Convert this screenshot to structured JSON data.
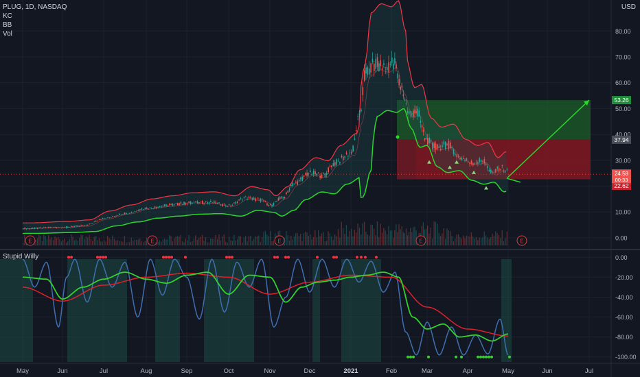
{
  "header": {
    "symbol": "PLUG, 1D, NASDAQ",
    "indicators": [
      "KC",
      "BB",
      "Vol"
    ],
    "currency": "USD",
    "lower_indicator": "Stupid Willy"
  },
  "colors": {
    "background": "#131722",
    "grid": "#1e222d",
    "up": "#26a69a",
    "down": "#ef5350",
    "keltner": "#f23645",
    "bollinger": "#2bd62b",
    "willy_line": "#3f6fb0",
    "willy_fast": "#34d12e",
    "willy_slow": "#e0202d",
    "profit_zone": "#1d5e2a",
    "loss_zone": "#8a1822"
  },
  "chart_data": [
    {
      "type": "candlestick",
      "x_ticks": [
        "May",
        "Jun",
        "Jul",
        "Aug",
        "Sep",
        "Oct",
        "Nov",
        "Dec",
        "2021",
        "Feb",
        "Mar",
        "Apr",
        "May",
        "Jun",
        "Jul"
      ],
      "y_ticks": [
        "80.00",
        "70.00",
        "60.00",
        "50.00",
        "40.00",
        "30.00",
        "20.00",
        "10.00",
        "0.00"
      ],
      "ylim": [
        -4,
        92
      ],
      "price_series": [
        {
          "m": 0,
          "v": 3.6
        },
        {
          "m": 1,
          "v": 4.1
        },
        {
          "m": 1.5,
          "v": 4.6
        },
        {
          "m": 2,
          "v": 7.5
        },
        {
          "m": 2.5,
          "v": 9.5
        },
        {
          "m": 3,
          "v": 11.5
        },
        {
          "m": 3.5,
          "v": 12.5
        },
        {
          "m": 4,
          "v": 13.5
        },
        {
          "m": 4.5,
          "v": 13.8
        },
        {
          "m": 5,
          "v": 12.5
        },
        {
          "m": 5.4,
          "v": 15.5
        },
        {
          "m": 5.8,
          "v": 14.5
        },
        {
          "m": 6,
          "v": 12.5
        },
        {
          "m": 6.3,
          "v": 15.5
        },
        {
          "m": 6.6,
          "v": 21
        },
        {
          "m": 7,
          "v": 25
        },
        {
          "m": 7.3,
          "v": 24
        },
        {
          "m": 7.6,
          "v": 29
        },
        {
          "m": 8,
          "v": 33
        },
        {
          "m": 8.2,
          "v": 47
        },
        {
          "m": 8.35,
          "v": 64
        },
        {
          "m": 8.6,
          "v": 67
        },
        {
          "m": 8.85,
          "v": 66
        },
        {
          "m": 9.05,
          "v": 68
        },
        {
          "m": 9.25,
          "v": 58
        },
        {
          "m": 9.5,
          "v": 48
        },
        {
          "m": 9.7,
          "v": 49
        },
        {
          "m": 9.95,
          "v": 38
        },
        {
          "m": 10.2,
          "v": 35
        },
        {
          "m": 10.5,
          "v": 36
        },
        {
          "m": 10.8,
          "v": 31
        },
        {
          "m": 11.1,
          "v": 29
        },
        {
          "m": 11.35,
          "v": 30
        },
        {
          "m": 11.6,
          "v": 25
        },
        {
          "m": 11.8,
          "v": 27
        },
        {
          "m": 12,
          "v": 25.5
        }
      ],
      "position_tool": {
        "entry": "37.94",
        "target": "53.26",
        "stop": "22.62",
        "current": "24.58",
        "countdown": "00:33"
      },
      "earnings_markers": [
        "E",
        "E",
        "E",
        "E",
        "E"
      ]
    },
    {
      "type": "line",
      "name": "Stupid Willy",
      "y_ticks": [
        "0.00",
        "-20.00",
        "-40.00",
        "-60.00",
        "-80.00",
        "-100.00"
      ],
      "ylim": [
        -105,
        5
      ],
      "slow_series": [
        {
          "m": 0,
          "v": -30
        },
        {
          "m": 1,
          "v": -44
        },
        {
          "m": 2,
          "v": -28
        },
        {
          "m": 3,
          "v": -20
        },
        {
          "m": 4,
          "v": -16
        },
        {
          "m": 5,
          "v": -20
        },
        {
          "m": 6,
          "v": -37
        },
        {
          "m": 7,
          "v": -25
        },
        {
          "m": 8,
          "v": -18
        },
        {
          "m": 9,
          "v": -20
        },
        {
          "m": 10,
          "v": -50
        },
        {
          "m": 11,
          "v": -72
        },
        {
          "m": 12,
          "v": -79
        }
      ],
      "fast_series": [
        {
          "m": 0,
          "v": -20
        },
        {
          "m": 0.6,
          "v": -22
        },
        {
          "m": 1,
          "v": -42
        },
        {
          "m": 1.5,
          "v": -30
        },
        {
          "m": 2,
          "v": -22
        },
        {
          "m": 2.5,
          "v": -15
        },
        {
          "m": 3,
          "v": -22
        },
        {
          "m": 3.5,
          "v": -26
        },
        {
          "m": 4,
          "v": -18
        },
        {
          "m": 4.5,
          "v": -15
        },
        {
          "m": 5,
          "v": -37
        },
        {
          "m": 5.5,
          "v": -18
        },
        {
          "m": 6,
          "v": -20
        },
        {
          "m": 6.4,
          "v": -45
        },
        {
          "m": 6.8,
          "v": -30
        },
        {
          "m": 7.2,
          "v": -25
        },
        {
          "m": 7.6,
          "v": -23
        },
        {
          "m": 8,
          "v": -20
        },
        {
          "m": 8.4,
          "v": -18
        },
        {
          "m": 8.8,
          "v": -15
        },
        {
          "m": 9.2,
          "v": -20
        },
        {
          "m": 9.6,
          "v": -60
        },
        {
          "m": 10,
          "v": -72
        },
        {
          "m": 10.4,
          "v": -67
        },
        {
          "m": 10.8,
          "v": -80
        },
        {
          "m": 11.2,
          "v": -78
        },
        {
          "m": 11.6,
          "v": -84
        },
        {
          "m": 12,
          "v": -77
        }
      ],
      "raw_series": [
        {
          "m": 0,
          "v": -2
        },
        {
          "m": 0.3,
          "v": -30
        },
        {
          "m": 0.6,
          "v": -5
        },
        {
          "m": 0.9,
          "v": -70
        },
        {
          "m": 1.1,
          "v": -20
        },
        {
          "m": 1.3,
          "v": -2
        },
        {
          "m": 1.6,
          "v": -45
        },
        {
          "m": 1.9,
          "v": -2
        },
        {
          "m": 2.2,
          "v": -30
        },
        {
          "m": 2.5,
          "v": -5
        },
        {
          "m": 2.8,
          "v": -60
        },
        {
          "m": 3.1,
          "v": -2
        },
        {
          "m": 3.4,
          "v": -38
        },
        {
          "m": 3.7,
          "v": -2
        },
        {
          "m": 4,
          "v": -20
        },
        {
          "m": 4.3,
          "v": -62
        },
        {
          "m": 4.6,
          "v": -2
        },
        {
          "m": 4.9,
          "v": -55
        },
        {
          "m": 5.2,
          "v": -5
        },
        {
          "m": 5.5,
          "v": -30
        },
        {
          "m": 5.8,
          "v": -2
        },
        {
          "m": 6.1,
          "v": -70
        },
        {
          "m": 6.4,
          "v": -40
        },
        {
          "m": 6.7,
          "v": -2
        },
        {
          "m": 7,
          "v": -35
        },
        {
          "m": 7.3,
          "v": -2
        },
        {
          "m": 7.6,
          "v": -30
        },
        {
          "m": 7.9,
          "v": -2
        },
        {
          "m": 8.2,
          "v": -25
        },
        {
          "m": 8.5,
          "v": -4
        },
        {
          "m": 8.8,
          "v": -35
        },
        {
          "m": 9.1,
          "v": -15
        },
        {
          "m": 9.4,
          "v": -75
        },
        {
          "m": 9.7,
          "v": -98
        },
        {
          "m": 10,
          "v": -65
        },
        {
          "m": 10.3,
          "v": -98
        },
        {
          "m": 10.6,
          "v": -70
        },
        {
          "m": 10.9,
          "v": -98
        },
        {
          "m": 11.2,
          "v": -78
        },
        {
          "m": 11.5,
          "v": -97
        },
        {
          "m": 11.8,
          "v": -62
        },
        {
          "m": 12,
          "v": -98
        }
      ]
    }
  ]
}
